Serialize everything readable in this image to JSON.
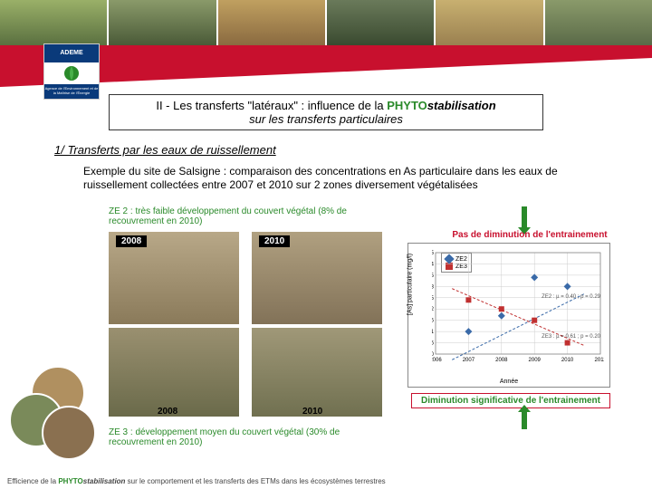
{
  "logo": {
    "brand": "ADEME",
    "sub": "Agence de l'Environnement et de la Maîtrise de l'Énergie"
  },
  "title": {
    "prefix": "II - Les transferts \"latéraux\" : influence de la ",
    "phyto": "PHYTO",
    "stab": "stabilisation",
    "line2": "sur les transferts particulaires"
  },
  "subtitle": "1/ Transferts par les eaux de ruissellement",
  "body": "Exemple du site de Salsigne : comparaison des concentrations en As particulaire dans les eaux de ruissellement collectées entre 2007 et 2010 sur 2 zones diversement végétalisées",
  "ze2": "ZE 2 : très faible développement du couvert végétal (8% de recouvrement en 2010)",
  "ze3": "ZE 3 : développement moyen du couvert végétal (30% de recouvrement en 2010)",
  "years": {
    "a": "2008",
    "b": "2010"
  },
  "callouts": {
    "no_dim": "Pas de diminution de l'entrainement",
    "yes_dim": "Diminution significative de l'entrainement"
  },
  "chart": {
    "type": "scatter",
    "ylabel": "[As] particulaire (mg/l)",
    "xlabel": "Année",
    "xlim": [
      2006,
      2011
    ],
    "ylim": [
      0,
      4.5
    ],
    "ytick_step": 0.5,
    "xtick_step": 1,
    "background_color": "#ffffff",
    "grid_color": "#cccccc",
    "series": [
      {
        "name": "ZE2",
        "marker": "diamond",
        "color": "#3a6aa8",
        "points": [
          [
            2007,
            1.0
          ],
          [
            2008,
            1.7
          ],
          [
            2009,
            3.4
          ],
          [
            2010,
            3.0
          ]
        ]
      },
      {
        "name": "ZE3",
        "marker": "square",
        "color": "#c03030",
        "points": [
          [
            2007,
            2.4
          ],
          [
            2008,
            2.0
          ],
          [
            2009,
            1.5
          ],
          [
            2010,
            0.5
          ]
        ]
      }
    ],
    "fits": [
      {
        "label": "ZE2 : µ = 0.40 ; p = 0.29",
        "slope": 0.73,
        "intercept": -1465,
        "color": "#3a6aa8"
      },
      {
        "label": "ZE3 : µ = 0.61 ; p = 0.20",
        "slope": -0.63,
        "intercept": 1267,
        "color": "#c03030"
      }
    ]
  },
  "footer": {
    "pre": "Efficience de la ",
    "phyto": "PHYTO",
    "stab": "stabilisation",
    "post": " sur le comportement et les transferts des ETMs dans les écosystèmes terrestres"
  },
  "colors": {
    "brand_red": "#c8102e",
    "accent_green": "#2a8a2a",
    "logo_blue": "#0a3a7a"
  }
}
